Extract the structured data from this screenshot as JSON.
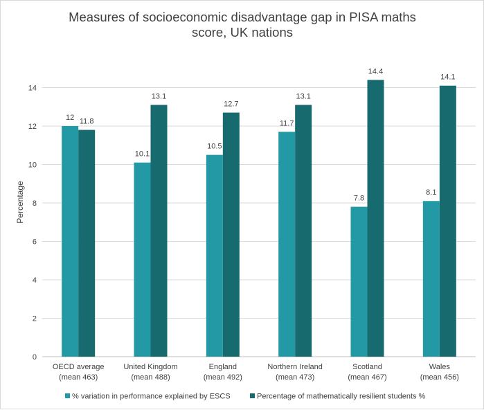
{
  "chart_data": {
    "type": "bar",
    "title_lines": [
      "Measures of socioeconomic disadvantage gap in PISA maths",
      "score, UK nations"
    ],
    "ylabel": "Percentage",
    "xlabel": "",
    "ylim": [
      0,
      16
    ],
    "yticks": [
      0,
      2,
      4,
      6,
      8,
      10,
      12,
      14
    ],
    "grid": "horizontal",
    "legend_position": "bottom",
    "categories": [
      [
        "OECD average",
        "(mean 463)"
      ],
      [
        "United Kingdom",
        "(mean 488)"
      ],
      [
        "England",
        "(mean 492)"
      ],
      [
        "Northern Ireland",
        "(mean 473)"
      ],
      [
        "Scotland",
        "(mean 467)"
      ],
      [
        "Wales",
        "(mean 456)"
      ]
    ],
    "series": [
      {
        "name": "% variation in performance explained by ESCS",
        "color": "#2399A5",
        "values": [
          12,
          10.1,
          10.5,
          11.7,
          7.8,
          8.1
        ]
      },
      {
        "name": "Percentage of mathematically resilient students %",
        "color": "#176B6F",
        "values": [
          11.8,
          13.1,
          12.7,
          13.1,
          14.4,
          14.1
        ]
      }
    ]
  }
}
